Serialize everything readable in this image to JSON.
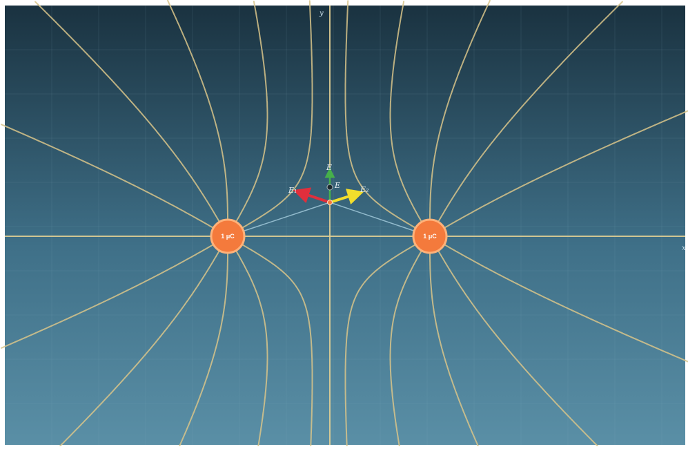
{
  "colors": {
    "bg_top": "#1a3240",
    "bg_bottom": "#5a8fa6",
    "field_line": "#d8c48a",
    "axis": "#e2cf93",
    "charge_fill": "#f47a3c",
    "charge_ring": "#ffb27a",
    "vector_e1": "#e02f3c",
    "vector_e2": "#f2de2c",
    "vector_total": "#46b04a",
    "connector": "#a9cfe0"
  },
  "axes": {
    "x_label": "x",
    "y_label": "y"
  },
  "charges": [
    {
      "label": "1 μC"
    },
    {
      "label": "1 μC"
    }
  ],
  "vectors": {
    "e1_label": "E₁",
    "e2_label": "E₂",
    "total_label": "E"
  },
  "icons": {
    "test_point": "dot-icon"
  }
}
